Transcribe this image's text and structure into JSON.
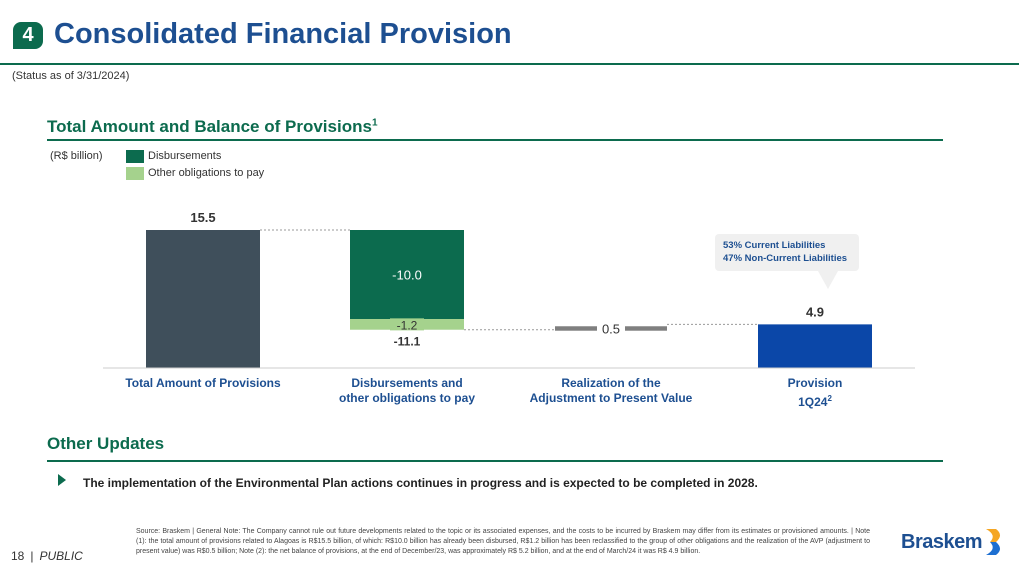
{
  "header": {
    "section_number": "4",
    "title": "Consolidated Financial Provision",
    "status": "(Status as of 3/31/2024)"
  },
  "chart_section": {
    "title": "Total Amount and Balance of Provisions",
    "title_sup": "1",
    "unit": "(R$ billion)",
    "legend": [
      {
        "label": "Disbursements",
        "color": "#0c6b4e"
      },
      {
        "label": "Other obligations to pay",
        "color": "#a5d28d"
      }
    ],
    "callout": {
      "line1": "53% Current Liabilities",
      "line2": "47% Non-Current Liabilities"
    }
  },
  "chart_data": {
    "type": "waterfall",
    "title": "Total Amount and Balance of Provisions",
    "unit": "R$ billion",
    "categories": [
      "Total Amount of Provisions",
      "Disbursements and other obligations to pay",
      "Realization of the Adjustment to Present Value",
      "Provision 1Q24"
    ],
    "category_lines": [
      [
        "Total Amount of Provisions",
        ""
      ],
      [
        "Disbursements and",
        "other obligations to pay"
      ],
      [
        "Realization of the",
        "Adjustment to Present Value"
      ],
      [
        "Provision",
        "1Q24"
      ]
    ],
    "category_sups": [
      "",
      "",
      "",
      "2"
    ],
    "bars": [
      {
        "kind": "total",
        "start": 0,
        "end": 15.5,
        "label": "15.5",
        "color": "#3f4f5b"
      },
      {
        "kind": "decrease",
        "segments": [
          {
            "name": "Disbursements",
            "value": -10.0,
            "label": "-10.0",
            "color": "#0c6b4e"
          },
          {
            "name": "Other obligations to pay",
            "value": -1.2,
            "label": "-1.2",
            "color": "#a5d28d"
          }
        ],
        "total_label": "-11.1"
      },
      {
        "kind": "increase",
        "value": 0.5,
        "label": "0.5",
        "color": "#7f7f7f"
      },
      {
        "kind": "total",
        "start": 0,
        "end": 4.9,
        "label": "4.9",
        "color": "#0b47a8"
      }
    ],
    "ylim": [
      0,
      15.5
    ]
  },
  "other_updates": {
    "title": "Other Updates",
    "bullet": "The implementation of the Environmental Plan actions continues in progress and is expected to be completed in 2028."
  },
  "footer": {
    "page": "18",
    "separator": "|",
    "classification": "PUBLIC",
    "source_note": "Source: Braskem | General Note: The Company cannot rule out future developments related to the topic or its associated expenses, and the costs to be incurred by Braskem may differ from its estimates or provisioned amounts. | Note (1): the total amount of provisions related to Alagoas is R$15.5 billion, of which: R$10.0 billion has already been disbursed, R$1.2 billion has been reclassified to the group of other obligations and the realization of the AVP (adjustment to present value) was R$0.5 billion; Note (2): the net balance of provisions, at the end of December/23, was approximately R$ 5.2 billion, and at the end of March/24 it was R$ 4.9 billion.",
    "logo_text": "Braskem"
  }
}
